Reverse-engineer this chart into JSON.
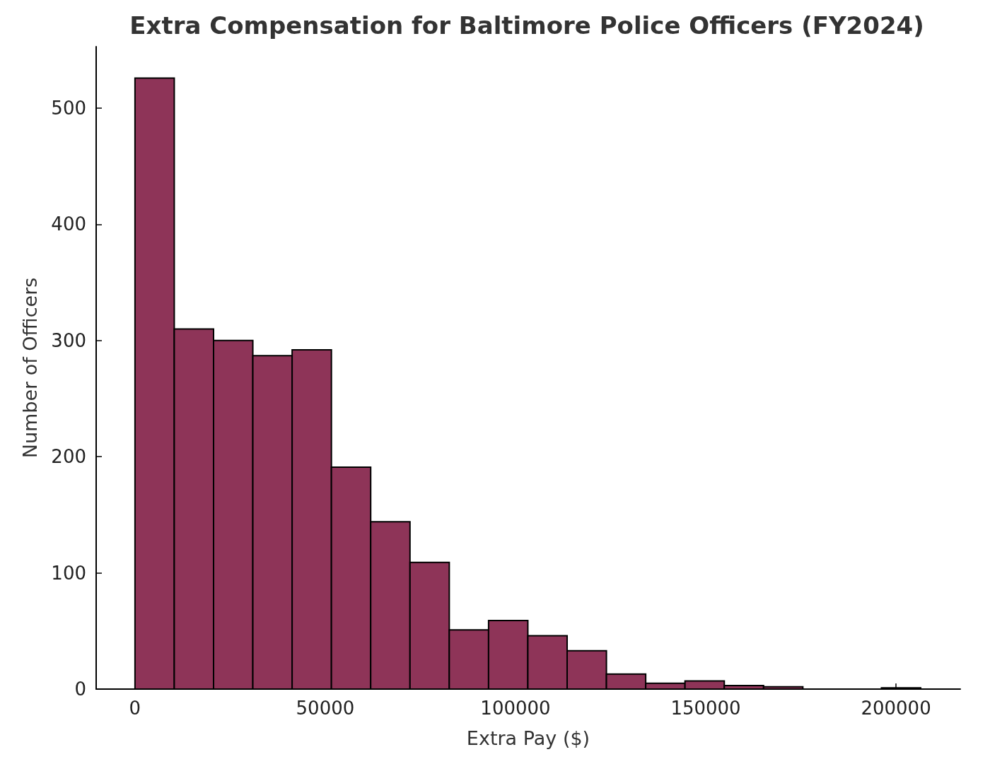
{
  "chart_data": {
    "type": "histogram",
    "title": "Extra Compensation for Baltimore Police Officers (FY2024)",
    "xlabel": "Extra Pay ($)",
    "ylabel": "Number of Officers",
    "bins": [
      0,
      10325,
      20650,
      30975,
      41300,
      51625,
      61950,
      72275,
      82600,
      92925,
      103250,
      113575,
      123900,
      134225,
      144550,
      154875,
      165200,
      175525,
      185850,
      196175,
      206500
    ],
    "values": [
      526,
      310,
      300,
      287,
      292,
      191,
      144,
      109,
      51,
      59,
      46,
      33,
      13,
      5,
      7,
      3,
      2,
      0,
      0,
      1
    ],
    "color": "#8e3458",
    "xlim": [
      -10200,
      216900
    ],
    "xticks": [
      0,
      50000,
      100000,
      150000,
      200000
    ],
    "ylim": [
      0,
      553
    ],
    "yticks": [
      0,
      100,
      200,
      300,
      400,
      500
    ],
    "grid": false
  }
}
